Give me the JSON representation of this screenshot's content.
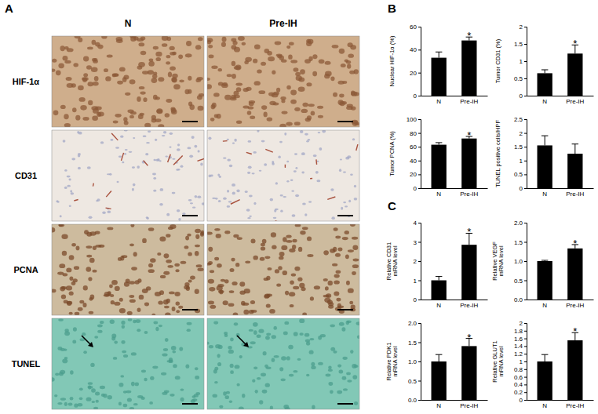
{
  "figure": {
    "panel_labels": [
      "A",
      "B",
      "C"
    ],
    "image_panel": {
      "columns": [
        "N",
        "Pre-IH"
      ],
      "rows": [
        "HIF-1α",
        "CD31",
        "PCNA",
        "TUNEL"
      ]
    }
  },
  "chart_data": [
    {
      "type": "bar",
      "y_label": "Nuclear HIF-1α (%)",
      "categories": [
        "N",
        "Pre-IH"
      ],
      "values": [
        33,
        48
      ],
      "errors": [
        5,
        3
      ],
      "significance": [
        null,
        "*"
      ],
      "color": "#000000",
      "ylim": [
        0,
        60
      ],
      "yticks": [
        0,
        20,
        40,
        60
      ]
    },
    {
      "type": "bar",
      "y_label": "Tumor CD31 (%)",
      "categories": [
        "N",
        "Pre-IH"
      ],
      "values": [
        0.65,
        1.22
      ],
      "errors": [
        0.1,
        0.25
      ],
      "significance": [
        null,
        "*"
      ],
      "color": "#000000",
      "ylim": [
        0,
        2
      ],
      "yticks": [
        0,
        0.5,
        1,
        1.5,
        2
      ]
    },
    {
      "type": "bar",
      "y_label": "Tumor PCNA (%)",
      "categories": [
        "N",
        "Pre-IH"
      ],
      "values": [
        63,
        72
      ],
      "errors": [
        3,
        3
      ],
      "significance": [
        null,
        "*"
      ],
      "color": "#000000",
      "ylim": [
        0,
        100
      ],
      "yticks": [
        0,
        20,
        40,
        60,
        80,
        100
      ]
    },
    {
      "type": "bar",
      "y_label": "TUNEL positive cells/HPF",
      "categories": [
        "N",
        "Pre-IH"
      ],
      "values": [
        1.55,
        1.25
      ],
      "errors": [
        0.35,
        0.35
      ],
      "color": "#000000",
      "ylim": [
        0,
        2.5
      ],
      "yticks": [
        0,
        0.5,
        1,
        1.5,
        2,
        2.5
      ]
    },
    {
      "type": "bar",
      "y_label": "Relative CD31\nmRNA level",
      "categories": [
        "N",
        "Pre-IH"
      ],
      "values": [
        1.0,
        2.85
      ],
      "errors": [
        0.2,
        0.6
      ],
      "significance": [
        null,
        "*"
      ],
      "color": "#000000",
      "ylim": [
        0,
        4
      ],
      "yticks": [
        0,
        1,
        2,
        3,
        4
      ]
    },
    {
      "type": "bar",
      "y_label": "Relative VEGF\nmRNA level",
      "categories": [
        "N",
        "Pre-IH"
      ],
      "values": [
        1.0,
        1.33
      ],
      "errors": [
        0.02,
        0.1
      ],
      "significance": [
        null,
        "*"
      ],
      "color": "#000000",
      "ylim": [
        0,
        2
      ],
      "yticks": [
        {
          "value": 0,
          "label": "0.0"
        },
        {
          "value": 0.5,
          "label": "0.5"
        },
        {
          "value": 1,
          "label": "1.0"
        },
        {
          "value": 1.5,
          "label": "1.5"
        },
        {
          "value": 2,
          "label": "2.0"
        }
      ]
    },
    {
      "type": "bar",
      "y_label": "Relative PDK1\nmRNA level",
      "categories": [
        "N",
        "Pre-IH"
      ],
      "values": [
        1.0,
        1.4
      ],
      "errors": [
        0.18,
        0.2
      ],
      "significance": [
        null,
        "*"
      ],
      "color": "#000000",
      "ylim": [
        0,
        2
      ],
      "yticks": [
        {
          "value": 0,
          "label": "0.0"
        },
        {
          "value": 0.5,
          "label": "0.5"
        },
        {
          "value": 1,
          "label": "1.0"
        },
        {
          "value": 1.5,
          "label": "1.5"
        },
        {
          "value": 2,
          "label": "2.0"
        }
      ]
    },
    {
      "type": "bar",
      "y_label": "Relative GLUT1\nmRNA level",
      "categories": [
        "N",
        "Pre-IH"
      ],
      "values": [
        1.0,
        1.55
      ],
      "errors": [
        0.18,
        0.2
      ],
      "significance": [
        null,
        "*"
      ],
      "color": "#000000",
      "ylim": [
        0,
        2
      ],
      "yticks": [
        0,
        0.2,
        0.4,
        0.6,
        0.8,
        1,
        1.2,
        1.4,
        1.6,
        1.8,
        2
      ]
    }
  ]
}
